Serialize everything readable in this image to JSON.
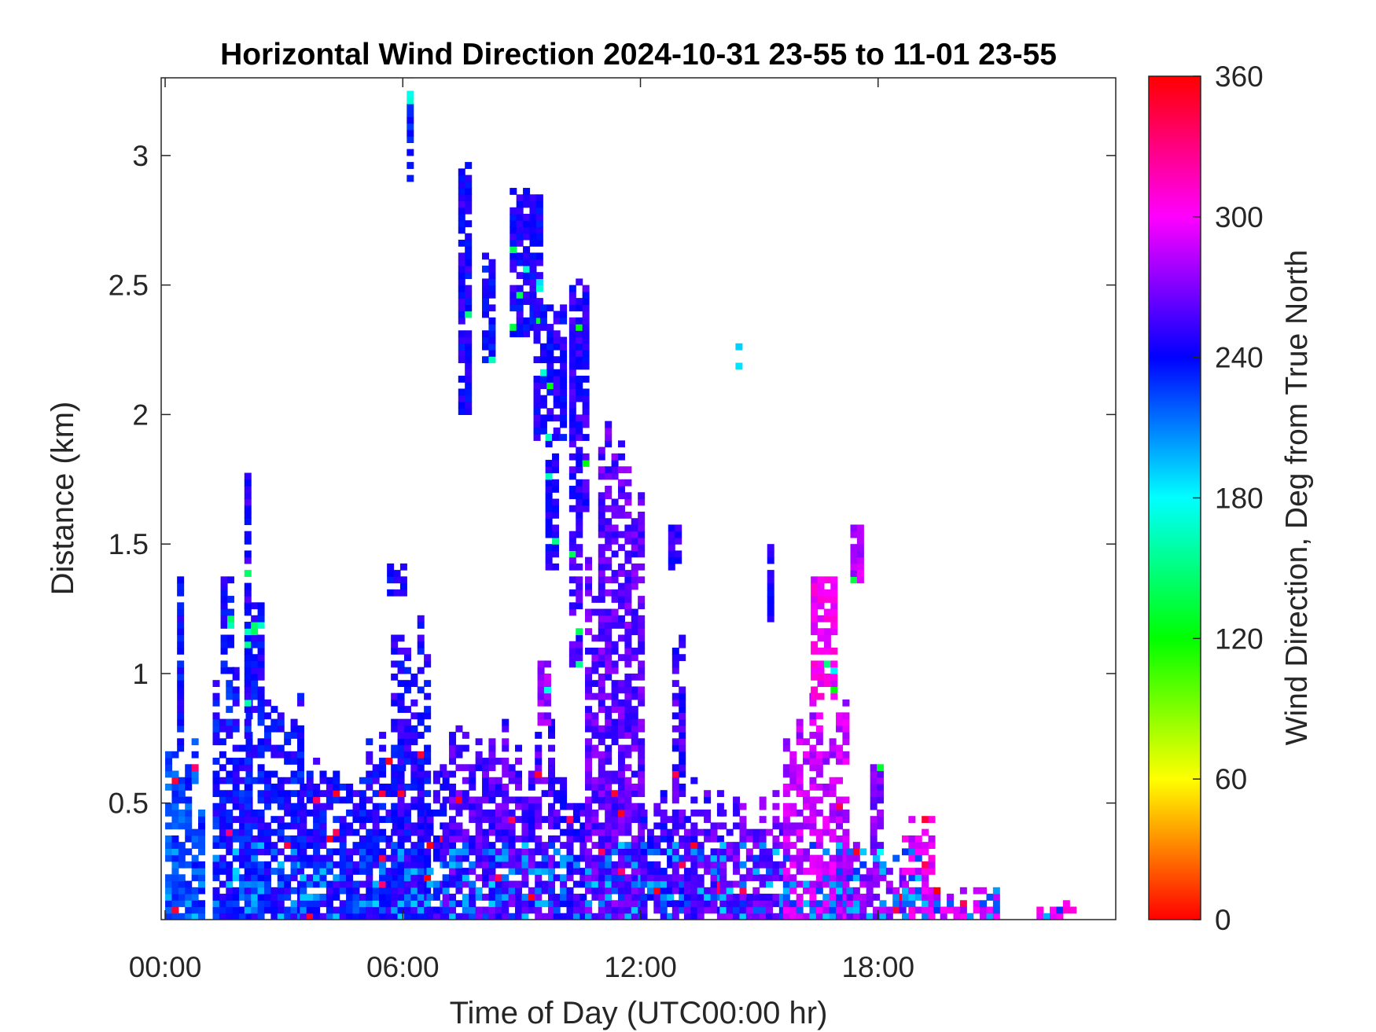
{
  "chart_data": {
    "type": "heatmap",
    "title": "Horizontal Wind Direction 2024-10-31 23-55 to 11-01 23-55",
    "xlabel": "Time of Day (UTC00:00 hr)",
    "ylabel": "Distance (km)",
    "xlim": [
      -0.1,
      24.0
    ],
    "ylim": [
      0.05,
      3.3
    ],
    "x_ticks": [
      0,
      6,
      12,
      18
    ],
    "x_tick_labels": [
      "00:00",
      "06:00",
      "12:00",
      "18:00"
    ],
    "y_ticks": [
      0.5,
      1,
      1.5,
      2,
      2.5,
      3
    ],
    "y_tick_labels": [
      "0.5",
      "1",
      "1.5",
      "2",
      "2.5",
      "3"
    ],
    "colorbar": {
      "label": "Wind Direction, Deg from True North",
      "range": [
        0,
        360
      ],
      "ticks": [
        0,
        60,
        120,
        180,
        240,
        300,
        360
      ],
      "tick_labels": [
        "0",
        "60",
        "120",
        "180",
        "240",
        "300",
        "360"
      ],
      "colormap": [
        "#ff0000",
        "#ffff00",
        "#00ff00",
        "#00ffff",
        "#0000ff",
        "#ff00ff",
        "#ff0000"
      ]
    },
    "grid": false,
    "legend": "colorbar-right",
    "time_step_hr": 0.1667,
    "range_step_km": 0.025,
    "blocks": [
      {
        "t0": 0.0,
        "t1": 1.0,
        "top": 0.7,
        "dir": 225
      },
      {
        "t0": 1.2,
        "t1": 2.2,
        "top": 1.0,
        "dir": 238
      },
      {
        "t0": 2.0,
        "t1": 3.4,
        "top": 0.85,
        "dir": 240
      },
      {
        "t0": 3.4,
        "t1": 6.0,
        "top": 0.7,
        "dir": 243
      },
      {
        "t0": 5.7,
        "t1": 6.6,
        "top": 1.3,
        "dir": 245
      },
      {
        "t0": 6.6,
        "t1": 7.0,
        "top": 0.65,
        "dir": 248
      },
      {
        "t0": 7.0,
        "t1": 9.8,
        "top": 0.75,
        "dir": 258
      },
      {
        "t0": 9.8,
        "t1": 10.6,
        "top": 0.55,
        "dir": 252
      },
      {
        "t0": 10.6,
        "t1": 12.0,
        "top": 1.8,
        "dir": 262
      },
      {
        "t0": 12.0,
        "t1": 12.8,
        "top": 0.5,
        "dir": 250
      },
      {
        "t0": 12.8,
        "t1": 13.1,
        "top": 1.4,
        "dir": 255
      },
      {
        "t0": 13.1,
        "t1": 14.0,
        "top": 0.6,
        "dir": 258
      },
      {
        "t0": 14.0,
        "t1": 15.6,
        "top": 0.5,
        "dir": 265
      },
      {
        "t0": 15.6,
        "t1": 17.2,
        "top": 0.9,
        "dir": 285
      },
      {
        "t0": 17.2,
        "t1": 18.6,
        "top": 0.3,
        "dir": 275
      },
      {
        "t0": 18.6,
        "t1": 19.4,
        "top": 0.45,
        "dir": 295
      },
      {
        "t0": 19.4,
        "t1": 21.0,
        "top": 0.15,
        "dir": 290
      },
      {
        "t0": 22.0,
        "t1": 23.0,
        "top": 0.1,
        "dir": 300
      }
    ],
    "plumes": [
      {
        "t0": 0.3,
        "t1": 0.4,
        "bottom": 0.7,
        "top": 1.35,
        "dir": 240
      },
      {
        "t0": 1.4,
        "t1": 1.6,
        "bottom": 1.0,
        "top": 1.35,
        "dir": 242
      },
      {
        "t0": 2.0,
        "t1": 2.4,
        "bottom": 0.85,
        "top": 1.25,
        "dir": 242
      },
      {
        "t0": 2.0,
        "t1": 2.1,
        "bottom": 1.25,
        "top": 1.75,
        "dir": 248
      },
      {
        "t0": 5.6,
        "t1": 6.0,
        "bottom": 1.3,
        "top": 1.4,
        "dir": 240
      },
      {
        "t0": 6.1,
        "t1": 6.2,
        "bottom": 2.9,
        "top": 3.3,
        "dir": 230
      },
      {
        "t0": 7.4,
        "t1": 7.6,
        "bottom": 2.0,
        "top": 2.95,
        "dir": 245
      },
      {
        "t0": 8.0,
        "t1": 8.3,
        "bottom": 2.2,
        "top": 2.6,
        "dir": 242
      },
      {
        "t0": 8.7,
        "t1": 9.4,
        "bottom": 2.3,
        "top": 2.85,
        "dir": 245
      },
      {
        "t0": 9.3,
        "t1": 10.0,
        "bottom": 1.9,
        "top": 2.4,
        "dir": 245
      },
      {
        "t0": 9.6,
        "t1": 9.9,
        "bottom": 1.4,
        "top": 1.9,
        "dir": 248
      },
      {
        "t0": 10.2,
        "t1": 10.6,
        "bottom": 1.6,
        "top": 2.5,
        "dir": 250
      },
      {
        "t0": 10.2,
        "t1": 10.5,
        "bottom": 1.0,
        "top": 1.6,
        "dir": 255
      },
      {
        "t0": 9.4,
        "t1": 9.7,
        "bottom": 0.8,
        "top": 1.05,
        "dir": 275
      },
      {
        "t0": 12.7,
        "t1": 12.9,
        "bottom": 1.4,
        "top": 1.55,
        "dir": 250
      },
      {
        "t0": 14.4,
        "t1": 14.5,
        "bottom": 2.15,
        "top": 2.25,
        "dir": 195
      },
      {
        "t0": 15.2,
        "t1": 15.3,
        "bottom": 1.2,
        "top": 1.5,
        "dir": 248
      },
      {
        "t0": 16.3,
        "t1": 16.9,
        "bottom": 0.9,
        "top": 1.35,
        "dir": 300
      },
      {
        "t0": 17.3,
        "t1": 17.5,
        "bottom": 1.35,
        "top": 1.55,
        "dir": 285
      },
      {
        "t0": 17.8,
        "t1": 18.0,
        "bottom": 0.3,
        "top": 0.65,
        "dir": 270
      }
    ],
    "annotations": []
  }
}
